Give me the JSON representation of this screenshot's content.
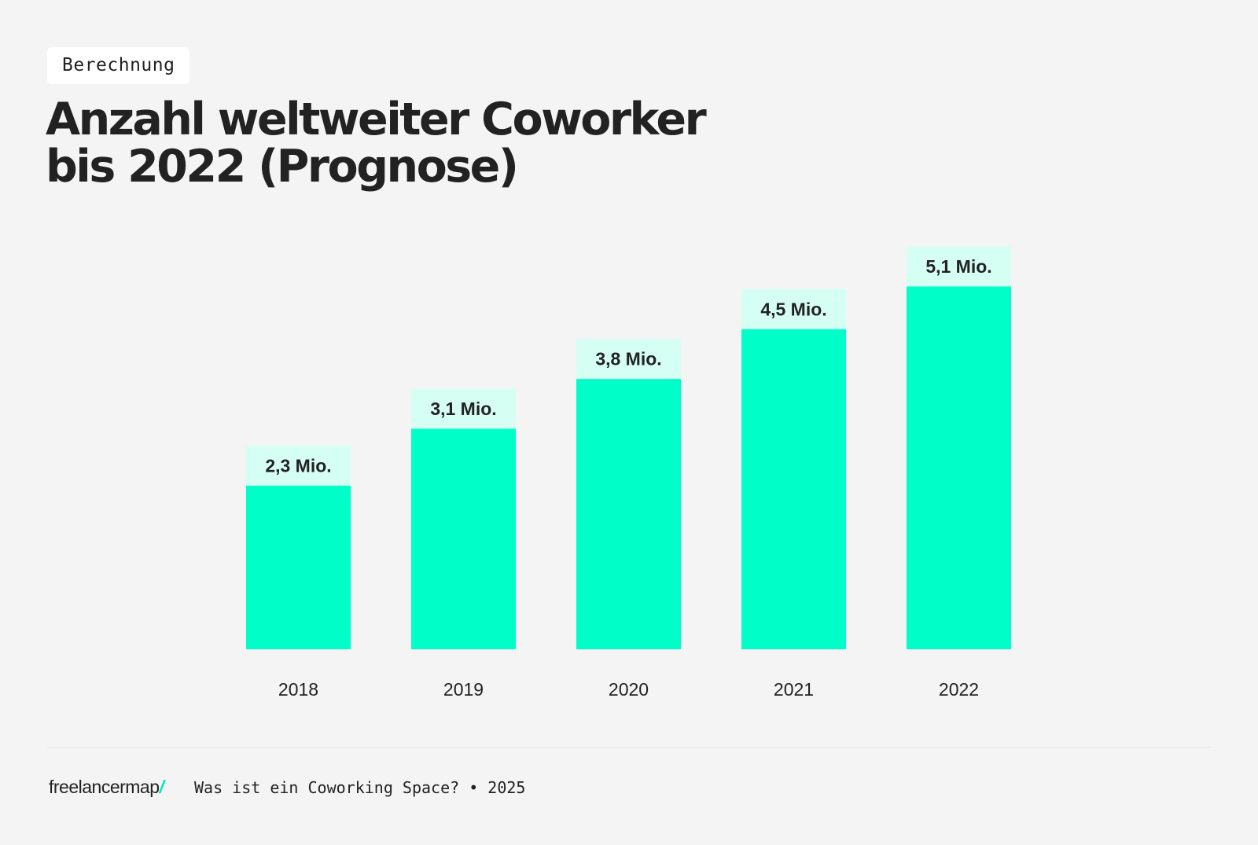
{
  "tag": "Berechnung",
  "title_lines": [
    "Anzahl weltweiter Coworker",
    "bis 2022 (Prognose)"
  ],
  "footer": {
    "logo": "freelancermap",
    "logo_slash": "/",
    "text": "Was ist ein Coworking Space? • 2025"
  },
  "colors": {
    "bar": "#00ffc8",
    "label_bg": "#d6fff4",
    "background": "#f4f4f4",
    "text": "#222222"
  },
  "chart_data": {
    "type": "bar",
    "title": "Anzahl weltweiter Coworker bis 2022 (Prognose)",
    "categories": [
      "2018",
      "2019",
      "2020",
      "2021",
      "2022"
    ],
    "values": [
      2.3,
      3.1,
      3.8,
      4.5,
      5.1
    ],
    "data_labels": [
      "2,3 Mio.",
      "3,1 Mio.",
      "3,8 Mio.",
      "4,5 Mio.",
      "5,1 Mio."
    ],
    "unit": "Mio.",
    "xlabel": "",
    "ylabel": "",
    "grid": false,
    "legend": "none"
  }
}
